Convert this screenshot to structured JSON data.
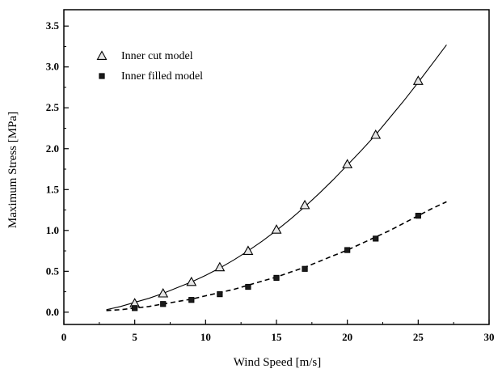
{
  "chart_data": {
    "type": "scatter",
    "title": "",
    "xlabel": "Wind Speed [m/s]",
    "ylabel": "Maximum Stress [MPa]",
    "xlim": [
      0,
      30
    ],
    "ylim": [
      -0.15,
      3.7
    ],
    "x_ticks": [
      0,
      5,
      10,
      15,
      20,
      25,
      30
    ],
    "y_ticks": [
      0.0,
      0.5,
      1.0,
      1.5,
      2.0,
      2.5,
      3.0,
      3.5
    ],
    "x_tick_labels": [
      "0",
      "5",
      "10",
      "15",
      "20",
      "25",
      "30"
    ],
    "y_tick_labels": [
      "0.0",
      "0.5",
      "1.0",
      "1.5",
      "2.0",
      "2.5",
      "3.0",
      "3.5"
    ],
    "grid": false,
    "legend_position": "top-left",
    "series": [
      {
        "name": "Inner cut model",
        "marker": "triangle",
        "line_style": "solid",
        "x": [
          5,
          7,
          9,
          11,
          13,
          15,
          17,
          20,
          22,
          25
        ],
        "y": [
          0.11,
          0.23,
          0.37,
          0.55,
          0.75,
          1.01,
          1.31,
          1.81,
          2.17,
          2.83
        ],
        "fit_x": [
          3,
          4,
          5,
          6,
          7,
          8,
          9,
          10,
          11,
          12,
          13,
          14,
          15,
          16,
          17,
          18,
          19,
          20,
          21,
          22,
          23,
          24,
          25,
          26,
          27
        ],
        "fit_y": [
          0.03,
          0.07,
          0.12,
          0.17,
          0.23,
          0.3,
          0.37,
          0.45,
          0.54,
          0.64,
          0.75,
          0.87,
          1.0,
          1.14,
          1.29,
          1.45,
          1.62,
          1.8,
          1.98,
          2.17,
          2.38,
          2.59,
          2.81,
          3.04,
          3.27
        ]
      },
      {
        "name": "Inner filled model",
        "marker": "square",
        "line_style": "dashed",
        "x": [
          5,
          7,
          9,
          11,
          13,
          15,
          17,
          20,
          22,
          25
        ],
        "y": [
          0.05,
          0.1,
          0.15,
          0.22,
          0.31,
          0.42,
          0.53,
          0.76,
          0.9,
          1.18
        ],
        "fit_x": [
          3,
          4,
          5,
          6,
          7,
          8,
          9,
          10,
          11,
          12,
          13,
          14,
          15,
          16,
          17,
          18,
          19,
          20,
          21,
          22,
          23,
          24,
          25,
          26,
          27
        ],
        "fit_y": [
          0.02,
          0.03,
          0.05,
          0.07,
          0.1,
          0.13,
          0.16,
          0.2,
          0.24,
          0.28,
          0.33,
          0.38,
          0.43,
          0.49,
          0.55,
          0.62,
          0.69,
          0.76,
          0.84,
          0.92,
          1.0,
          1.09,
          1.18,
          1.27,
          1.35
        ]
      }
    ]
  },
  "colors": {
    "axis": "#000000",
    "line": "#000000",
    "marker_stroke": "#000000",
    "triangle_fill": "#e6e6e6",
    "square_fill": "#1a1a1a"
  }
}
